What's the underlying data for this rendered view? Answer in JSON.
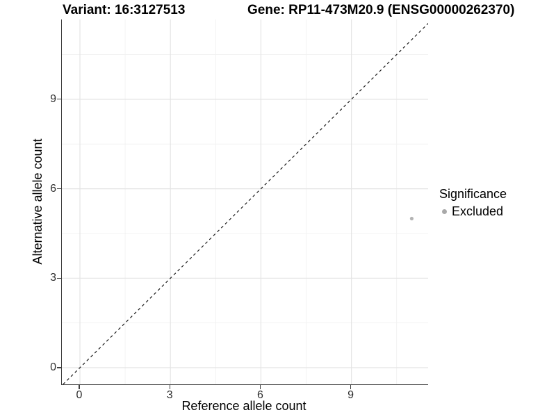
{
  "chart_data": {
    "type": "scatter",
    "title_variant": "Variant: 16:3127513",
    "title_gene": "Gene: RP11-473M20.9 (ENSG00000262370)",
    "xlabel": "Reference allele count",
    "ylabel": "Alternative allele count",
    "x_ticks": [
      0,
      3,
      6,
      9
    ],
    "y_ticks": [
      0,
      3,
      6,
      9
    ],
    "x_minor_ticks": [
      1.5,
      4.5,
      7.5,
      10.5
    ],
    "y_minor_ticks": [
      1.5,
      4.5,
      7.5,
      10.5
    ],
    "xlim": [
      -0.6,
      11.54
    ],
    "ylim": [
      -0.56,
      11.68
    ],
    "grid": "major+minor",
    "legend_position": "right",
    "reference_line": {
      "type": "identity y=x",
      "style": "dashed",
      "color": "#1a1a1a"
    },
    "series": [
      {
        "name": "Excluded",
        "color": "#b4b4b4",
        "points": [
          {
            "x": 11,
            "y": 5
          }
        ]
      }
    ],
    "legend": {
      "title": "Significance",
      "items": [
        {
          "label": "Excluded",
          "color": "#a9a9a9",
          "marker": "dot"
        }
      ]
    },
    "colors": {
      "axis_line": "#3f3f3f",
      "tick_text": "#2e2e2e",
      "grid_major": "#e4e4e4",
      "grid_minor": "#f1f1f1",
      "background": "#ffffff"
    }
  }
}
